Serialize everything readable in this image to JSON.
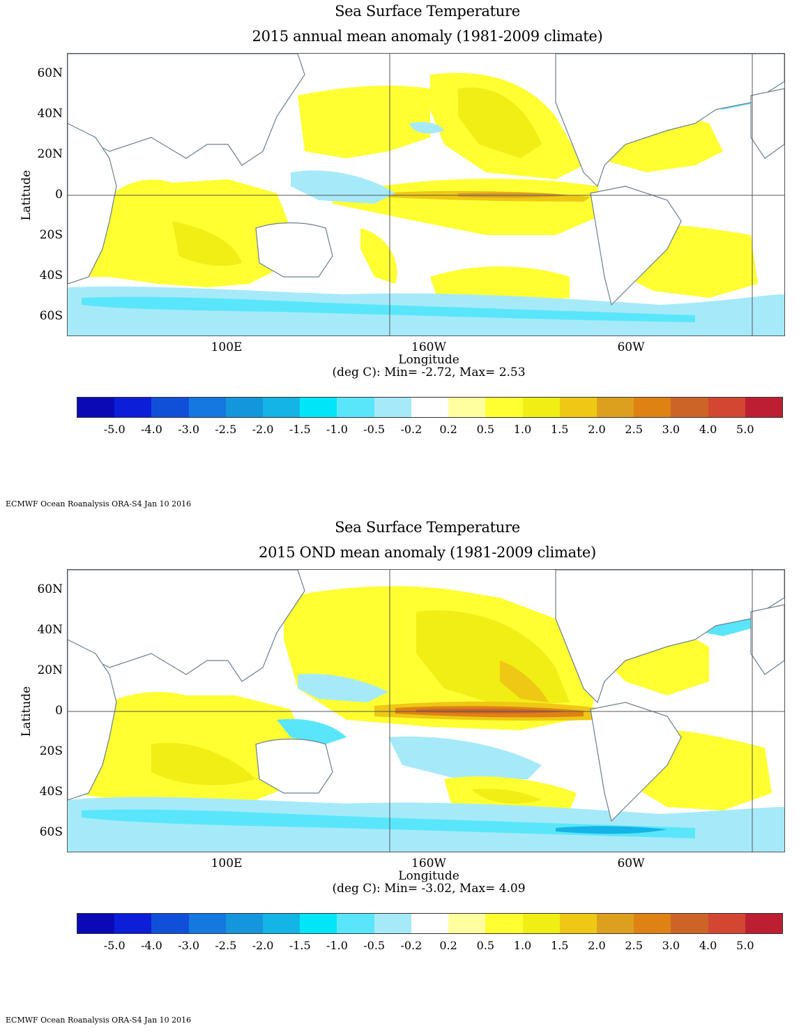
{
  "panels": [
    {
      "title": "Sea Surface Temperature",
      "subtitle": "2015 annual mean anomaly (1981-2009 climate)",
      "ylabel": "Latitude",
      "xlabel": "Longitude",
      "stats": "(deg C): Min= -2.72, Max= 2.53",
      "credit": "ECMWF Ocean Roanalysis ORA-S4 Jan 10 2016"
    },
    {
      "title": "Sea Surface Temperature",
      "subtitle": "2015 OND mean anomaly (1981-2009 climate)",
      "ylabel": "Latitude",
      "xlabel": "Longitude",
      "stats": "(deg C): Min= -3.02, Max= 4.09",
      "credit": "ECMWF Ocean Roanalysis ORA-S4 Jan 10 2016"
    }
  ],
  "lat_ticks": [
    "60N",
    "40N",
    "20N",
    "0",
    "20S",
    "40S",
    "60S"
  ],
  "lon_ticks": [
    "100E",
    "160W",
    "60W"
  ],
  "colorbar": {
    "colors": [
      "#0a0ab4",
      "#0c1ed8",
      "#1050d8",
      "#1478e0",
      "#1496dc",
      "#14b4e6",
      "#00e6f8",
      "#5ae6fa",
      "#a6eafa",
      "#ffffff",
      "#ffffa0",
      "#ffff32",
      "#f0ee14",
      "#eec814",
      "#dca01e",
      "#de8214",
      "#cc6428",
      "#d24632",
      "#be1e32"
    ],
    "labels": [
      "-5.0",
      "-4.0",
      "-3.0",
      "-2.5",
      "-2.0",
      "-1.5",
      "-1.0",
      "-0.5",
      "-0.2",
      "0.2",
      "0.5",
      "1.0",
      "1.5",
      "2.0",
      "2.5",
      "3.0",
      "4.0",
      "5.0"
    ]
  },
  "colors": {
    "land": "#ffffff",
    "neutral": "#ffffff",
    "warm_light": "#ffff32",
    "warm_mid": "#f0ee14",
    "warm_strong": "#eec814",
    "warm_deep": "#de8214",
    "hot": "#cc6428",
    "cool_light": "#a6eafa",
    "cool_mid": "#5ae6fa",
    "cool_strong": "#14b4e6",
    "coast": "#6a8090"
  }
}
